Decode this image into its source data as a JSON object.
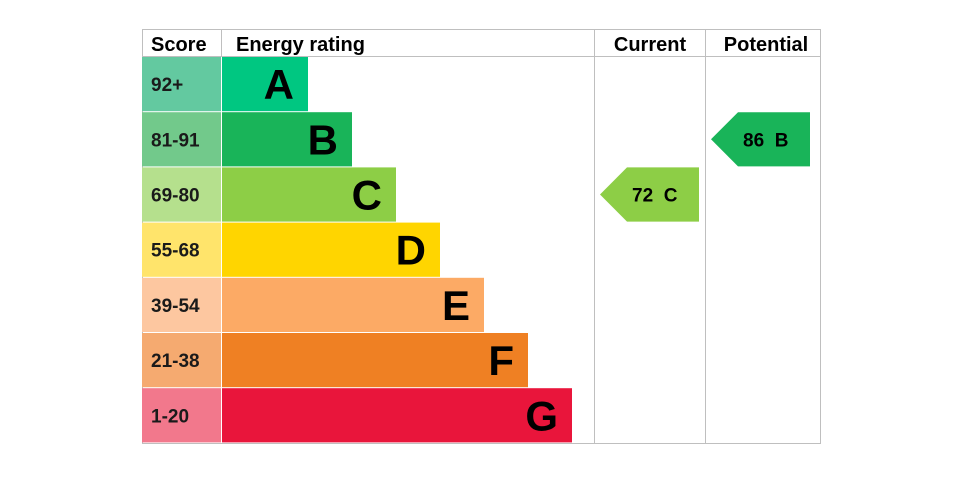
{
  "chart_data": {
    "type": "bar",
    "title": "",
    "headers": {
      "score": "Score",
      "rating": "Energy rating",
      "current": "Current",
      "potential": "Potential"
    },
    "bands": [
      {
        "score": "92+",
        "letter": "A",
        "color": "#00c781",
        "score_color": "#63c9a0",
        "rel": 1
      },
      {
        "score": "81-91",
        "letter": "B",
        "color": "#19b459",
        "score_color": "#72c98b",
        "rel": 2
      },
      {
        "score": "69-80",
        "letter": "C",
        "color": "#8dce46",
        "score_color": "#b5e08d",
        "rel": 3
      },
      {
        "score": "55-68",
        "letter": "D",
        "color": "#ffd500",
        "score_color": "#ffe46b",
        "rel": 4
      },
      {
        "score": "39-54",
        "letter": "E",
        "color": "#fcaa65",
        "score_color": "#fdc7a0",
        "rel": 5
      },
      {
        "score": "21-38",
        "letter": "F",
        "color": "#ef8023",
        "score_color": "#f5aa70",
        "rel": 6
      },
      {
        "score": "1-20",
        "letter": "G",
        "color": "#e9153b",
        "score_color": "#f2788c",
        "rel": 7
      }
    ],
    "current": {
      "value": 72,
      "letter": "C",
      "label": "72  C",
      "color": "#8dce46"
    },
    "potential": {
      "value": 86,
      "letter": "B",
      "label": "86  B",
      "color": "#19b459"
    }
  }
}
